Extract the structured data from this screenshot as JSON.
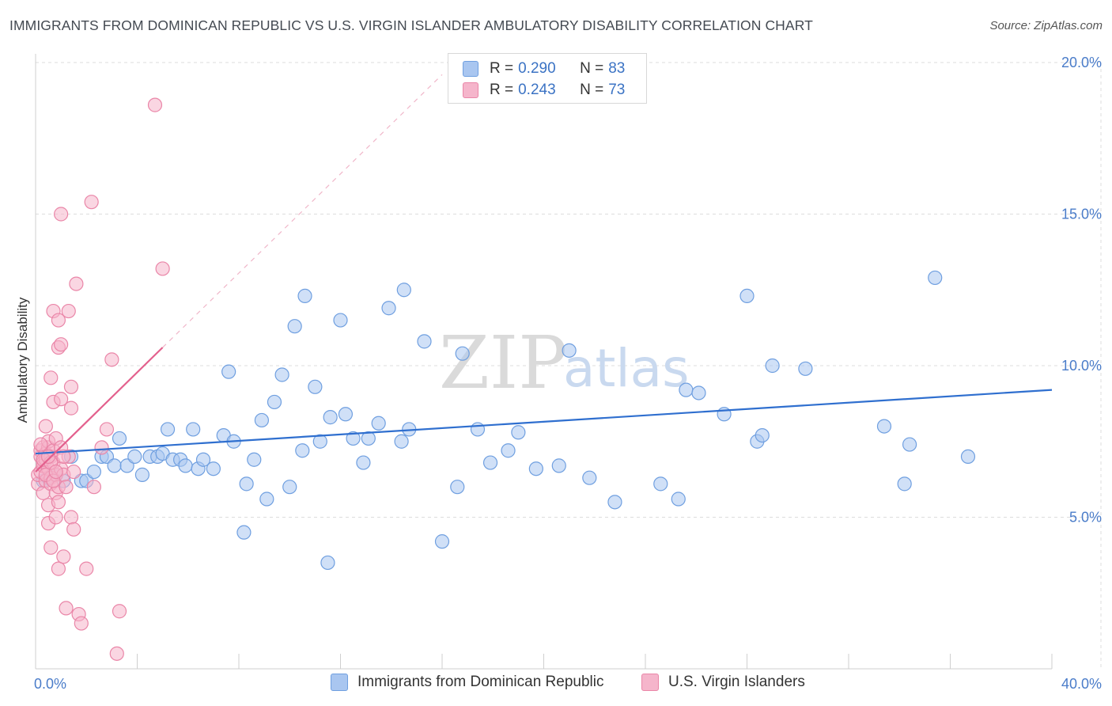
{
  "title": "IMMIGRANTS FROM DOMINICAN REPUBLIC VS U.S. VIRGIN ISLANDER AMBULATORY DISABILITY CORRELATION CHART",
  "source": "Source: ZipAtlas.com",
  "watermark": {
    "zip": "ZIP",
    "atlas": "atlas"
  },
  "legend": {
    "rows": [
      {
        "r_label": "R = ",
        "r_value": "0.290",
        "n_label": "N = ",
        "n_value": "83",
        "color": "#a9c6f0"
      },
      {
        "r_label": "R = ",
        "r_value": "0.243",
        "n_label": "N = ",
        "n_value": "73",
        "color": "#f5b5cb"
      }
    ]
  },
  "bottom_legend": {
    "blue": "Immigrants from Dominican Republic",
    "pink": "U.S. Virgin Islanders"
  },
  "colors": {
    "blue_fill": "#a9c6f0",
    "blue_stroke": "#6f9fe0",
    "blue_line": "#2f6fcf",
    "pink_fill": "#f5b5cb",
    "pink_stroke": "#ea86a8",
    "pink_line": "#e3608d",
    "grid": "#dddddd",
    "tick_text": "#4a7cc9"
  },
  "chart_data": {
    "type": "scatter",
    "title": "IMMIGRANTS FROM DOMINICAN REPUBLIC VS U.S. VIRGIN ISLANDER AMBULATORY DISABILITY CORRELATION CHART",
    "xlabel": "",
    "ylabel": "Ambulatory Disability",
    "xlim": [
      0,
      40
    ],
    "ylim": [
      0,
      20
    ],
    "x_ticks": [
      {
        "value": 0,
        "label": "0.0%"
      },
      {
        "value": 40,
        "label": "40.0%"
      }
    ],
    "y_ticks": [
      {
        "value": 5,
        "label": "5.0%"
      },
      {
        "value": 10,
        "label": "10.0%"
      },
      {
        "value": 15,
        "label": "15.0%"
      },
      {
        "value": 20,
        "label": "20.0%"
      }
    ],
    "series": [
      {
        "name": "Immigrants from Dominican Republic",
        "color": "#a9c6f0",
        "trend": {
          "x": [
            0,
            40
          ],
          "y": [
            7.1,
            9.2
          ]
        },
        "points": [
          [
            0.3,
            6.2
          ],
          [
            0.5,
            6.3
          ],
          [
            0.8,
            6.4
          ],
          [
            1.1,
            6.2
          ],
          [
            1.4,
            7.0
          ],
          [
            1.8,
            6.2
          ],
          [
            2.0,
            6.2
          ],
          [
            2.3,
            6.5
          ],
          [
            2.6,
            7.0
          ],
          [
            2.8,
            7.0
          ],
          [
            3.1,
            6.7
          ],
          [
            3.3,
            7.6
          ],
          [
            3.6,
            6.7
          ],
          [
            3.9,
            7.0
          ],
          [
            4.2,
            6.4
          ],
          [
            4.5,
            7.0
          ],
          [
            4.8,
            7.0
          ],
          [
            5.0,
            7.1
          ],
          [
            5.2,
            7.9
          ],
          [
            5.4,
            6.9
          ],
          [
            5.7,
            6.9
          ],
          [
            5.9,
            6.7
          ],
          [
            6.2,
            7.9
          ],
          [
            6.4,
            6.6
          ],
          [
            6.6,
            6.9
          ],
          [
            7.0,
            6.6
          ],
          [
            7.4,
            7.7
          ],
          [
            7.6,
            9.8
          ],
          [
            7.8,
            7.5
          ],
          [
            8.2,
            4.5
          ],
          [
            8.3,
            6.1
          ],
          [
            8.6,
            6.9
          ],
          [
            8.9,
            8.2
          ],
          [
            9.1,
            5.6
          ],
          [
            9.4,
            8.8
          ],
          [
            9.7,
            9.7
          ],
          [
            10.0,
            6.0
          ],
          [
            10.2,
            11.3
          ],
          [
            10.5,
            7.2
          ],
          [
            10.6,
            12.3
          ],
          [
            11.0,
            9.3
          ],
          [
            11.2,
            7.5
          ],
          [
            11.5,
            3.5
          ],
          [
            11.6,
            8.3
          ],
          [
            12.0,
            11.5
          ],
          [
            12.2,
            8.4
          ],
          [
            12.5,
            7.6
          ],
          [
            12.9,
            6.8
          ],
          [
            13.1,
            7.6
          ],
          [
            13.5,
            8.1
          ],
          [
            13.9,
            11.9
          ],
          [
            14.4,
            7.5
          ],
          [
            14.5,
            12.5
          ],
          [
            14.7,
            7.9
          ],
          [
            15.3,
            10.8
          ],
          [
            16.0,
            4.2
          ],
          [
            16.6,
            6.0
          ],
          [
            16.8,
            10.4
          ],
          [
            17.4,
            7.9
          ],
          [
            17.9,
            6.8
          ],
          [
            18.6,
            7.2
          ],
          [
            19.0,
            7.8
          ],
          [
            19.7,
            6.6
          ],
          [
            20.6,
            6.7
          ],
          [
            21.0,
            10.5
          ],
          [
            21.8,
            6.3
          ],
          [
            22.8,
            5.5
          ],
          [
            24.6,
            6.1
          ],
          [
            25.3,
            5.6
          ],
          [
            25.6,
            9.2
          ],
          [
            26.1,
            9.1
          ],
          [
            27.1,
            8.4
          ],
          [
            28.0,
            12.3
          ],
          [
            28.4,
            7.5
          ],
          [
            28.6,
            7.7
          ],
          [
            29.0,
            10.0
          ],
          [
            30.3,
            9.9
          ],
          [
            33.4,
            8.0
          ],
          [
            34.2,
            6.1
          ],
          [
            34.4,
            7.4
          ],
          [
            35.4,
            12.9
          ],
          [
            36.7,
            7.0
          ]
        ]
      },
      {
        "name": "U.S. Virgin Islanders",
        "color": "#f5b5cb",
        "trend": {
          "x": [
            0,
            5
          ],
          "y": [
            6.5,
            10.6
          ]
        },
        "trend_extension": {
          "x": [
            5,
            16
          ],
          "y": [
            10.6,
            19.6
          ]
        },
        "points": [
          [
            0.1,
            6.1
          ],
          [
            0.1,
            6.4
          ],
          [
            0.2,
            6.5
          ],
          [
            0.2,
            7.0
          ],
          [
            0.2,
            7.2
          ],
          [
            0.3,
            6.8
          ],
          [
            0.3,
            7.3
          ],
          [
            0.3,
            5.8
          ],
          [
            0.3,
            6.7
          ],
          [
            0.4,
            7.1
          ],
          [
            0.4,
            6.2
          ],
          [
            0.4,
            8.0
          ],
          [
            0.4,
            6.9
          ],
          [
            0.5,
            7.3
          ],
          [
            0.5,
            6.6
          ],
          [
            0.5,
            5.4
          ],
          [
            0.5,
            4.8
          ],
          [
            0.5,
            7.5
          ],
          [
            0.6,
            7.0
          ],
          [
            0.6,
            6.3
          ],
          [
            0.6,
            9.6
          ],
          [
            0.6,
            6.1
          ],
          [
            0.6,
            4.0
          ],
          [
            0.7,
            11.8
          ],
          [
            0.7,
            8.8
          ],
          [
            0.7,
            7.2
          ],
          [
            0.7,
            6.8
          ],
          [
            0.8,
            5.8
          ],
          [
            0.8,
            7.6
          ],
          [
            0.8,
            6.4
          ],
          [
            0.8,
            5.0
          ],
          [
            0.9,
            11.5
          ],
          [
            0.9,
            10.6
          ],
          [
            0.9,
            6.0
          ],
          [
            0.9,
            5.5
          ],
          [
            0.9,
            3.3
          ],
          [
            1.0,
            15.0
          ],
          [
            1.0,
            10.7
          ],
          [
            1.0,
            8.9
          ],
          [
            1.0,
            7.3
          ],
          [
            1.0,
            6.6
          ],
          [
            1.1,
            6.4
          ],
          [
            1.1,
            3.7
          ],
          [
            1.2,
            6.0
          ],
          [
            1.2,
            2.0
          ],
          [
            1.3,
            11.8
          ],
          [
            1.3,
            7.0
          ],
          [
            1.4,
            9.3
          ],
          [
            1.4,
            8.6
          ],
          [
            1.4,
            5.0
          ],
          [
            1.5,
            6.5
          ],
          [
            1.5,
            4.6
          ],
          [
            1.6,
            12.7
          ],
          [
            1.7,
            1.8
          ],
          [
            1.8,
            1.5
          ],
          [
            2.0,
            3.3
          ],
          [
            2.2,
            15.4
          ],
          [
            2.3,
            6.0
          ],
          [
            2.6,
            7.3
          ],
          [
            2.8,
            7.9
          ],
          [
            3.0,
            10.2
          ],
          [
            3.2,
            0.5
          ],
          [
            3.3,
            1.9
          ],
          [
            4.7,
            18.6
          ],
          [
            5.0,
            13.2
          ],
          [
            0.2,
            7.4
          ],
          [
            0.3,
            6.9
          ],
          [
            0.4,
            6.4
          ],
          [
            0.6,
            6.8
          ],
          [
            0.7,
            6.2
          ],
          [
            0.8,
            6.5
          ],
          [
            1.1,
            7.0
          ],
          [
            0.5,
            7.0
          ]
        ]
      }
    ]
  }
}
